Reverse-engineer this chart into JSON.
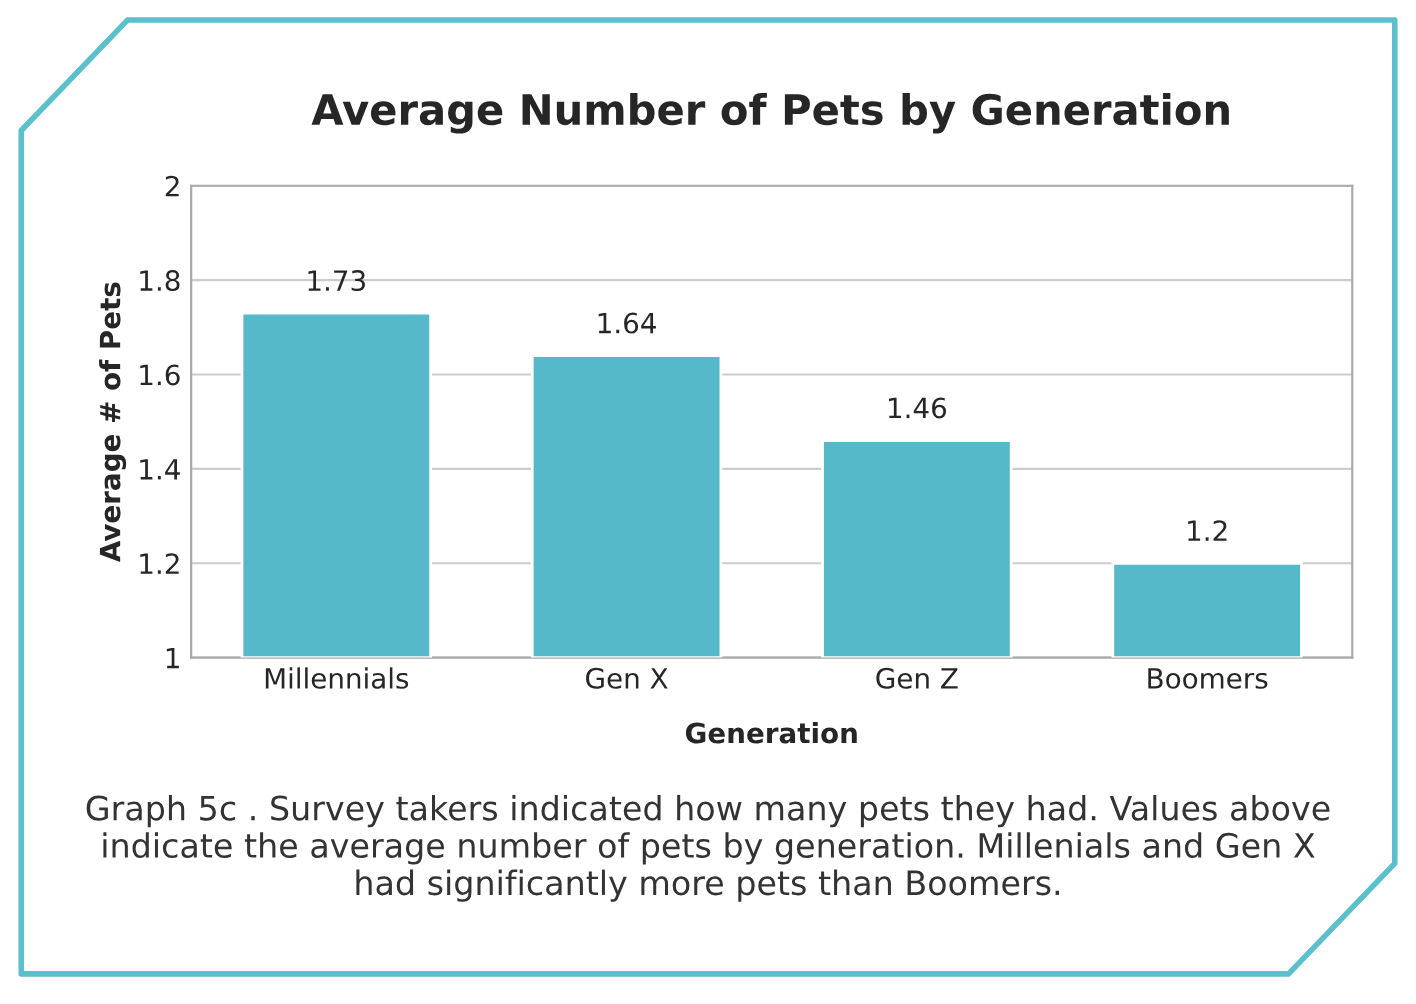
{
  "chart_data": {
    "type": "bar",
    "title": "Average Number of Pets by Generation",
    "xlabel": "Generation",
    "ylabel": "Average # of Pets",
    "categories": [
      "Millennials",
      "Gen X",
      "Gen Z",
      "Boomers"
    ],
    "values": [
      1.73,
      1.64,
      1.46,
      1.2
    ],
    "color": "#56b9c9",
    "ylim": [
      1,
      2
    ],
    "yticks": [
      1,
      1.2,
      1.4,
      1.6,
      1.8,
      2
    ],
    "grid": "y",
    "data_labels": true,
    "annotations": [
      "Graph 5c . Survey takers indicated how many pets they had. Values above indicate the average number of pets by generation. Millenials and Gen X had significantly more pets than Boomers."
    ]
  }
}
